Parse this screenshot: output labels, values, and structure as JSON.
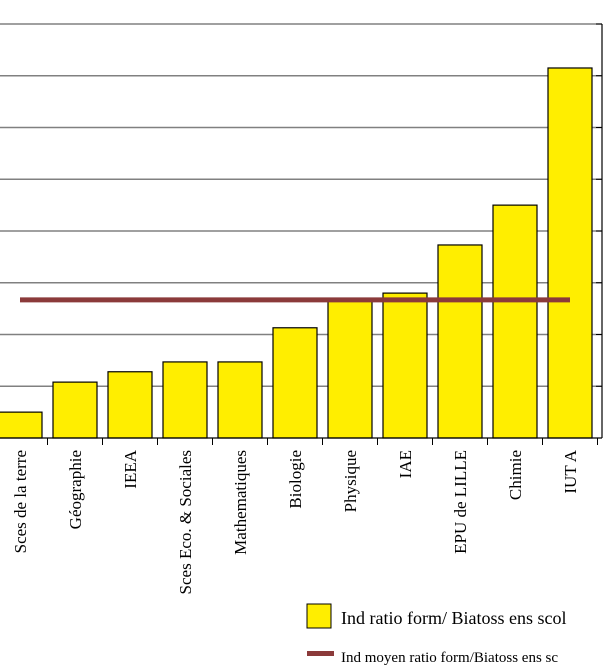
{
  "chart_data": {
    "type": "bar",
    "categories": [
      "Sces de la terre",
      "Géographie",
      "IEEA",
      "Sces Eco. & Sociales",
      "Mathematiques",
      "Biologie",
      "Physique",
      "IAE",
      "EPU de LILLE",
      "Chimie",
      "IUT A"
    ],
    "series": [
      {
        "name": "Ind ratio form/ Biatoss ens scol",
        "values": [
          0.5,
          1.08,
          1.28,
          1.47,
          1.47,
          2.13,
          2.7,
          2.8,
          3.73,
          4.5,
          7.15
        ],
        "color": "#ffee00",
        "kind": "bar"
      },
      {
        "name": "Ind moyen ratio form/Biatoss ens sc",
        "values": [
          2.67,
          2.67,
          2.67,
          2.67,
          2.67,
          2.67,
          2.67,
          2.67,
          2.67,
          2.67,
          2.67
        ],
        "color": "#8b3a3a",
        "kind": "line"
      }
    ],
    "ylim": [
      0,
      8
    ],
    "grid": true,
    "legend_position": "bottom-right",
    "title": "",
    "xlabel": "",
    "ylabel": ""
  }
}
